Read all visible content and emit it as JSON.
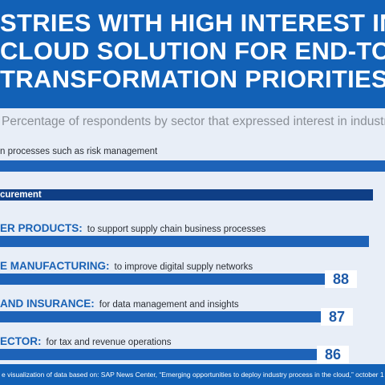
{
  "header": {
    "title_lines": [
      "STRIES WITH HIGH INTEREST IN",
      "CLOUD SOLUTION FOR END-TO-EN",
      "TRANSFORMATION PRIORITIES"
    ],
    "subtitle": "Percentage of respondents by sector that expressed interest in industry cloud"
  },
  "colors": {
    "header_bg": "#1261b6",
    "bar_blue": "#1e63b8",
    "bar_dark": "#0f3f86",
    "page_bg": "#e8eef7",
    "sector_text": "#1a62b5"
  },
  "chart_data": {
    "type": "bar",
    "orientation": "horizontal",
    "title": "STRIES WITH HIGH INTEREST IN CLOUD SOLUTION FOR END-TO-EN TRANSFORMATION PRIORITIES",
    "subtitle": "Percentage of respondents by sector that expressed interest in industry cloud",
    "rows": [
      {
        "sector": "",
        "text": "n processes such as risk management",
        "bar_label": "",
        "value_label": "",
        "value": 95,
        "color": "#1e63b8"
      },
      {
        "sector": "",
        "text": "",
        "bar_label": "curement",
        "value_label": "",
        "value": 92,
        "color": "#0f3f86"
      },
      {
        "sector": "ER PRODUCTS:",
        "text": "to support supply chain business processes",
        "bar_label": "",
        "value_label": "",
        "value": 91,
        "color": "#1e63b8"
      },
      {
        "sector": "E MANUFACTURING:",
        "text": "to improve digital supply networks",
        "bar_label": "",
        "value_label": "88",
        "value": 88,
        "color": "#1e63b8"
      },
      {
        "sector": "AND INSURANCE:",
        "text": "for data management and insights",
        "bar_label": "",
        "value_label": "87",
        "value": 87,
        "color": "#1e63b8"
      },
      {
        "sector": "ECTOR:",
        "text": "for tax and revenue operations",
        "bar_label": "",
        "value_label": "86",
        "value": 86,
        "color": "#1e63b8"
      }
    ]
  },
  "footnote": "e visualization of data based on: SAP News Center, “Emerging opportunities to deploy industry process in the cloud,” october 1"
}
